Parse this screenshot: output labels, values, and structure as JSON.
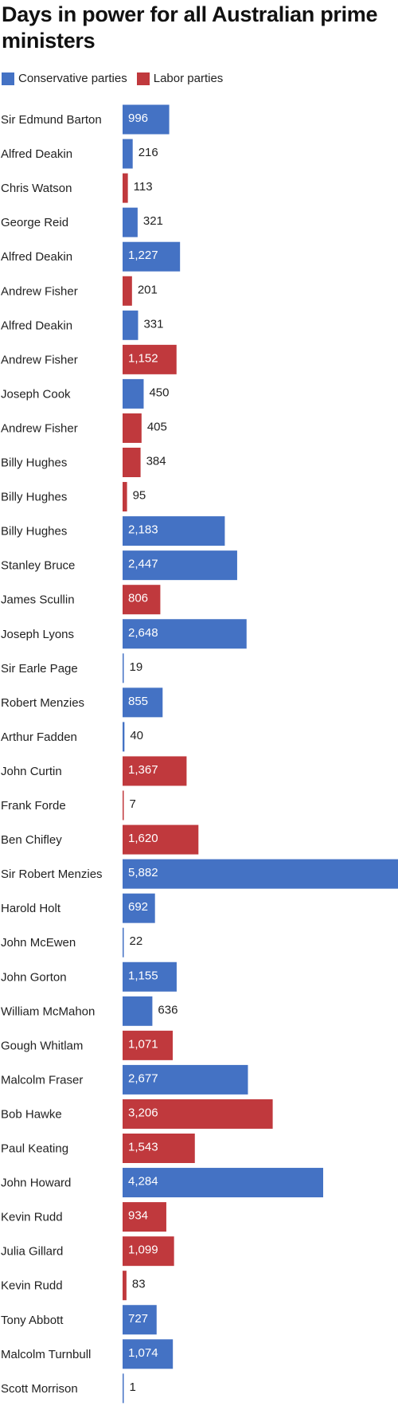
{
  "colors": {
    "conservative": "#4472c4",
    "labor": "#c0393d"
  },
  "chart_data": {
    "type": "bar",
    "orientation": "horizontal",
    "title": "Days in power for all Australian prime ministers",
    "legend": [
      {
        "key": "conservative",
        "label": "Conservative parties"
      },
      {
        "key": "labor",
        "label": "Labor parties"
      }
    ],
    "legend_placement": "top-left",
    "grid": false,
    "xlim": [
      0,
      5882
    ],
    "categories": [
      "Sir Edmund Barton",
      "Alfred Deakin",
      "Chris Watson",
      "George Reid",
      "Alfred Deakin",
      "Andrew Fisher",
      "Alfred Deakin",
      "Andrew Fisher",
      "Joseph Cook",
      "Andrew Fisher",
      "Billy Hughes",
      "Billy Hughes",
      "Billy Hughes",
      "Stanley Bruce",
      "James Scullin",
      "Joseph Lyons",
      "Sir Earle Page",
      "Robert Menzies",
      "Arthur Fadden",
      "John Curtin",
      "Frank Forde",
      "Ben Chifley",
      "Sir Robert Menzies",
      "Harold Holt",
      "John McEwen",
      "John Gorton",
      "William McMahon",
      "Gough Whitlam",
      "Malcolm Fraser",
      "Bob Hawke",
      "Paul Keating",
      "John Howard",
      "Kevin Rudd",
      "Julia Gillard",
      "Kevin Rudd",
      "Tony Abbott",
      "Malcolm Turnbull",
      "Scott Morrison"
    ],
    "values": [
      996,
      216,
      113,
      321,
      1227,
      201,
      331,
      1152,
      450,
      405,
      384,
      95,
      2183,
      2447,
      806,
      2648,
      19,
      855,
      40,
      1367,
      7,
      1620,
      5882,
      692,
      22,
      1155,
      636,
      1071,
      2677,
      3206,
      1543,
      4284,
      934,
      1099,
      83,
      727,
      1074,
      1
    ],
    "value_labels": [
      "996",
      "216",
      "113",
      "321",
      "1,227",
      "201",
      "331",
      "1,152",
      "450",
      "405",
      "384",
      "95",
      "2,183",
      "2,447",
      "806",
      "2,648",
      "19",
      "855",
      "40",
      "1,367",
      "7",
      "1,620",
      "5,882",
      "692",
      "22",
      "1,155",
      "636",
      "1,071",
      "2,677",
      "3,206",
      "1,543",
      "4,284",
      "934",
      "1,099",
      "83",
      "727",
      "1,074",
      "1"
    ],
    "party": [
      "conservative",
      "conservative",
      "labor",
      "conservative",
      "conservative",
      "labor",
      "conservative",
      "labor",
      "conservative",
      "labor",
      "labor",
      "labor",
      "conservative",
      "conservative",
      "labor",
      "conservative",
      "conservative",
      "conservative",
      "conservative",
      "labor",
      "labor",
      "labor",
      "conservative",
      "conservative",
      "conservative",
      "conservative",
      "conservative",
      "labor",
      "conservative",
      "labor",
      "labor",
      "conservative",
      "labor",
      "labor",
      "labor",
      "conservative",
      "conservative",
      "conservative"
    ]
  }
}
